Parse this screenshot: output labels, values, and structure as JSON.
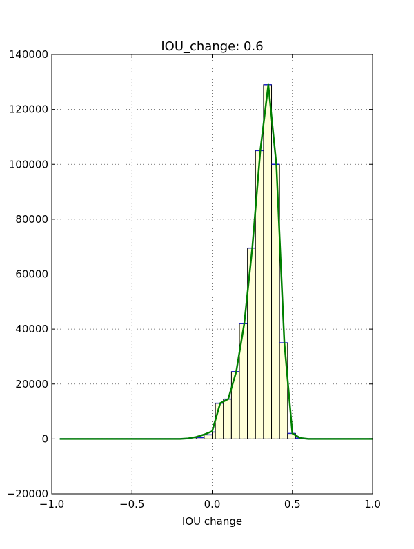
{
  "chart_data": {
    "type": "bar",
    "title": "IOU_change: 0.6",
    "xlabel": "IOU change",
    "ylabel": "",
    "xlim": [
      -1.0,
      1.0
    ],
    "ylim": [
      -20000,
      140000
    ],
    "xticks": [
      "−1.0",
      "−0.5",
      "0.0",
      "0.5",
      "1.0"
    ],
    "yticks": [
      "−20000",
      "0",
      "20000",
      "40000",
      "60000",
      "80000",
      "100000",
      "120000",
      "140000"
    ],
    "grid": true,
    "bin_width": 0.05,
    "bins": [
      {
        "x0": -0.1,
        "value": 500
      },
      {
        "x0": -0.05,
        "value": 1500
      },
      {
        "x0": 0.0,
        "value": 2500
      },
      {
        "x0": 0.02,
        "value": 13000
      },
      {
        "x0": 0.07,
        "value": 14500
      },
      {
        "x0": 0.12,
        "value": 24500
      },
      {
        "x0": 0.17,
        "value": 42000
      },
      {
        "x0": 0.22,
        "value": 69500
      },
      {
        "x0": 0.27,
        "value": 105000
      },
      {
        "x0": 0.32,
        "value": 129000
      },
      {
        "x0": 0.37,
        "value": 100000
      },
      {
        "x0": 0.42,
        "value": 35000
      },
      {
        "x0": 0.47,
        "value": 2000
      },
      {
        "x0": 0.52,
        "value": 300
      }
    ],
    "series": [
      {
        "type": "line",
        "color": "#008000",
        "x": [
          -0.95,
          -0.6,
          -0.3,
          -0.2,
          -0.15,
          -0.1,
          -0.05,
          0.0,
          0.05,
          0.1,
          0.15,
          0.2,
          0.25,
          0.3,
          0.35,
          0.4,
          0.45,
          0.5,
          0.55,
          0.6,
          1.0
        ],
        "y": [
          0,
          0,
          0,
          0,
          200,
          700,
          1600,
          2800,
          13000,
          14500,
          24500,
          42000,
          69500,
          105000,
          129000,
          100000,
          35000,
          2000,
          300,
          0,
          0
        ]
      }
    ],
    "colors": {
      "bar_fill": "#ffffd9",
      "bar_edge": "#000000",
      "bar_top": "#1f1fd0",
      "line": "#008000",
      "grid": "#555555"
    }
  }
}
